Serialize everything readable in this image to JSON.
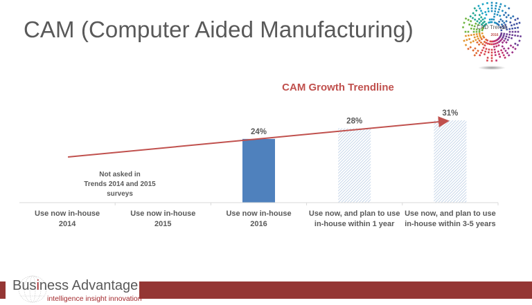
{
  "slide": {
    "title": "CAM (Computer Aided Manufacturing)"
  },
  "logo": {
    "label": "CAD Trends",
    "year": "2016"
  },
  "footer": {
    "brand_prefix": "Bus",
    "brand_accent": "i",
    "brand_suffix": "ness Advantage",
    "tagline": "intelligence  insight  innovation",
    "bar_color": "#943634"
  },
  "chart_data": {
    "type": "bar",
    "title": "CAM Growth Trendline",
    "xlabel": "",
    "ylabel": "",
    "ylim": [
      0,
      40
    ],
    "grid": false,
    "legend": "none",
    "categories": [
      [
        "Use now in-house",
        "2014"
      ],
      [
        "Use now in-house",
        "2015"
      ],
      [
        "Use now in-house",
        "2016"
      ],
      [
        "Use now, and plan to use",
        "in-house within 1 year"
      ],
      [
        "Use now, and plan to use",
        "in-house within 3-5 years"
      ]
    ],
    "values": [
      null,
      null,
      24,
      28,
      31
    ],
    "data_labels": [
      "",
      "",
      "24%",
      "28%",
      "31%"
    ],
    "bar_styles": [
      "none",
      "none",
      "solid",
      "hatched",
      "hatched"
    ],
    "colors": {
      "solid": "#4f81bd",
      "hatched": "#b8cce4",
      "trendline": "#c0504d",
      "axis": "#d9d9d9",
      "text": "#595959"
    },
    "annotation": [
      "Not asked in",
      "Trends 2014 and 2015",
      "surveys"
    ],
    "trendline": {
      "label": "CAM Growth Trendline",
      "from_category": 0,
      "to_category": 4,
      "start_value": 17.5,
      "end_value": 31
    }
  }
}
